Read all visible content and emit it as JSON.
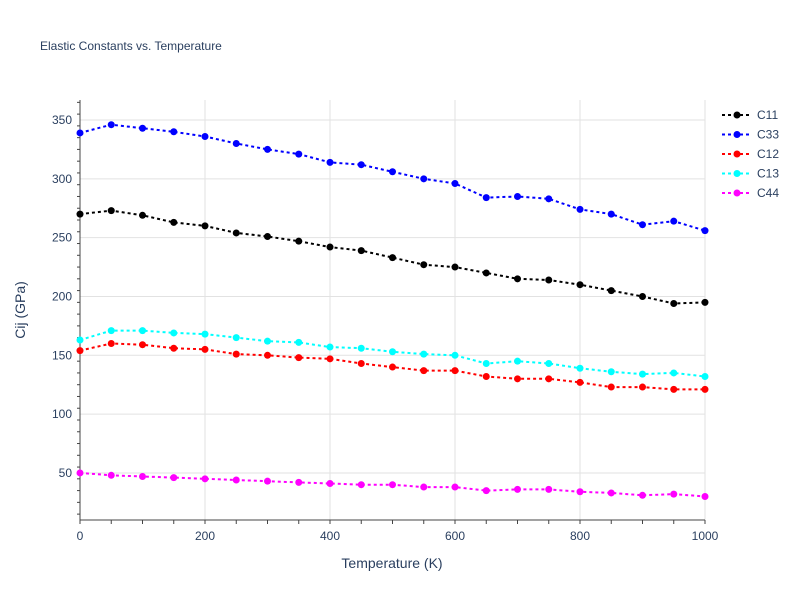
{
  "chart_data": {
    "type": "line",
    "title": "Elastic Constants vs. Temperature",
    "xlabel": "Temperature (K)",
    "ylabel": "Cij (GPa)",
    "xlim": [
      0,
      1000
    ],
    "ylim": [
      10,
      367
    ],
    "xticks": [
      0,
      200,
      400,
      600,
      800,
      1000
    ],
    "yticks": [
      50,
      100,
      150,
      200,
      250,
      300,
      350
    ],
    "grid": true,
    "legend_position": "top-right",
    "x": [
      0,
      50,
      100,
      150,
      200,
      250,
      300,
      350,
      400,
      450,
      500,
      550,
      600,
      650,
      700,
      750,
      800,
      850,
      900,
      950,
      1000
    ],
    "series": [
      {
        "name": "C11",
        "color": "#000000",
        "values": [
          270,
          273,
          269,
          263,
          260,
          254,
          251,
          247,
          242,
          239,
          233,
          227,
          225,
          220,
          215,
          214,
          210,
          205,
          200,
          194,
          195
        ]
      },
      {
        "name": "C33",
        "color": "#0000ff",
        "values": [
          339,
          346,
          343,
          340,
          336,
          330,
          325,
          321,
          314,
          312,
          306,
          300,
          296,
          284,
          285,
          283,
          274,
          270,
          261,
          264,
          256
        ]
      },
      {
        "name": "C12",
        "color": "#ff0000",
        "values": [
          154,
          160,
          159,
          156,
          155,
          151,
          150,
          148,
          147,
          143,
          140,
          137,
          137,
          132,
          130,
          130,
          127,
          123,
          123,
          121,
          121
        ]
      },
      {
        "name": "C13",
        "color": "#00ffff",
        "values": [
          163,
          171,
          171,
          169,
          168,
          165,
          162,
          161,
          157,
          156,
          153,
          151,
          150,
          143,
          145,
          143,
          139,
          136,
          134,
          135,
          132
        ]
      },
      {
        "name": "C44",
        "color": "#ff00ff",
        "values": [
          50,
          48,
          47,
          46,
          45,
          44,
          43,
          42,
          41,
          40,
          40,
          38,
          38,
          35,
          36,
          36,
          34,
          33,
          31,
          32,
          30
        ]
      }
    ]
  }
}
